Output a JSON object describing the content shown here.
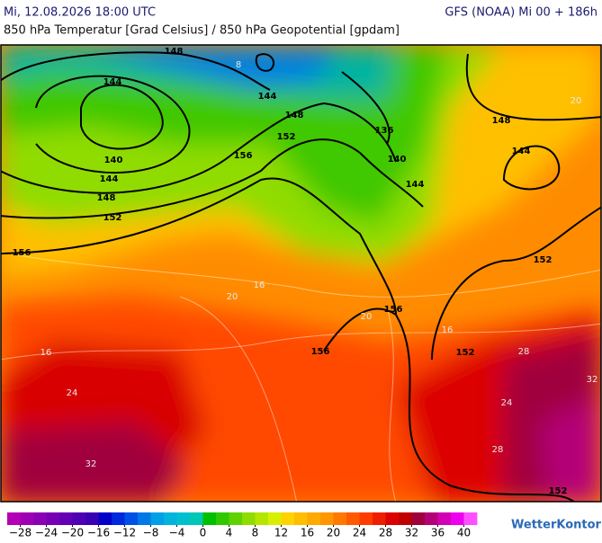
{
  "header": {
    "datetime": "Mi, 12.08.2026 18:00 UTC",
    "model": "GFS (NOAA) Mi 00 + 186h",
    "subtitle": "850 hPa Temperatur [Grad Celsius] / 850 hPa Geopotential [gpdam]"
  },
  "map": {
    "geopotential_labels": [
      148,
      144,
      144,
      148,
      152,
      140,
      144,
      148,
      152,
      156,
      156,
      136,
      140,
      144,
      148,
      144,
      152,
      156,
      156,
      152,
      152
    ],
    "temperature_labels": [
      8,
      20,
      16,
      24,
      16,
      20,
      16,
      20,
      28,
      32,
      24,
      28,
      32
    ]
  },
  "colorbar": {
    "range": [
      -30,
      42
    ],
    "colors": [
      "#b400b4",
      "#a000b4",
      "#8c00b4",
      "#7800b4",
      "#6400b4",
      "#5000b4",
      "#3c00b4",
      "#0000c8",
      "#0028dc",
      "#0050e6",
      "#0078e6",
      "#00a0e6",
      "#00b4dc",
      "#00c0d0",
      "#00c8b4",
      "#00c000",
      "#30c800",
      "#60d200",
      "#90dc00",
      "#b4e600",
      "#d8f000",
      "#ffd200",
      "#ffbe00",
      "#ffaa00",
      "#ff9600",
      "#ff7800",
      "#ff5a00",
      "#ff3c00",
      "#f01e00",
      "#dc0000",
      "#c00000",
      "#a0003c",
      "#b40078",
      "#d200b4",
      "#f000f0",
      "#ff50ff"
    ],
    "ticks": [
      {
        "value": -28,
        "label": "−28"
      },
      {
        "value": -24,
        "label": "−24"
      },
      {
        "value": -20,
        "label": "−20"
      },
      {
        "value": -16,
        "label": "−16"
      },
      {
        "value": -12,
        "label": "−12"
      },
      {
        "value": -8,
        "label": "−8"
      },
      {
        "value": -4,
        "label": "−4"
      },
      0,
      4,
      8,
      12,
      16,
      20,
      24,
      28,
      32,
      36,
      40
    ]
  },
  "brand": "WetterKontor"
}
